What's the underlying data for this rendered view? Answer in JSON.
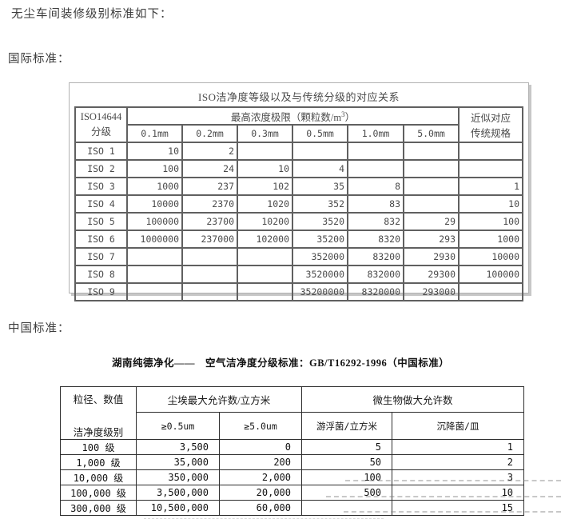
{
  "page": {
    "intro": "无尘车间装修级别标准如下：",
    "intl_label": "国际标准：",
    "cn_label": "中国标准："
  },
  "iso_table": {
    "title": "ISO洁净度等级以及与传统分级的对应关系",
    "col1_header": [
      "ISO14644",
      "分级"
    ],
    "conc_header": {
      "prefix": "最高浓度极限（颗粒数/m",
      "sup": "3",
      "suffix": "）"
    },
    "size_headers": [
      "0.1mm",
      "0.2mm",
      "0.3mm",
      "0.5mm",
      "1.0mm",
      "5.0mm"
    ],
    "legacy_header": [
      "近似对应",
      "传统规格"
    ],
    "rows": [
      [
        "ISO 1",
        "10",
        "2",
        "",
        "",
        "",
        "",
        ""
      ],
      [
        "ISO 2",
        "100",
        "24",
        "10",
        "4",
        "",
        "",
        ""
      ],
      [
        "ISO 3",
        "1000",
        "237",
        "102",
        "35",
        "8",
        "",
        "1"
      ],
      [
        "ISO 4",
        "10000",
        "2370",
        "1020",
        "352",
        "83",
        "",
        "10"
      ],
      [
        "ISO 5",
        "100000",
        "23700",
        "10200",
        "3520",
        "832",
        "29",
        "100"
      ],
      [
        "ISO 6",
        "1000000",
        "237000",
        "102000",
        "35200",
        "8320",
        "293",
        "1000"
      ],
      [
        "ISO 7",
        "",
        "",
        "",
        "352000",
        "83200",
        "2930",
        "10000"
      ],
      [
        "ISO 8",
        "",
        "",
        "",
        "3520000",
        "832000",
        "29300",
        "100000"
      ],
      [
        "ISO 9",
        "",
        "",
        "",
        "35200000",
        "8320000",
        "293000",
        ""
      ]
    ]
  },
  "cn_table": {
    "title": "湖南纯德净化——　空气洁净度分级标准：GB/T16292-1996（中国标准）",
    "corner_top": "粒径、数值",
    "corner_bottom": "洁净度级别",
    "dust_header": "尘埃最大允许数/立方米",
    "micro_header": "微生物做大允许数",
    "sub_headers": [
      "≥0.5um",
      "≥5.0um",
      "游浮菌/立方米",
      "沉降菌/皿"
    ],
    "rows": [
      [
        "100 级",
        "3,500",
        "0",
        "5",
        "1"
      ],
      [
        "1,000 级",
        "35,000",
        "200",
        "50",
        "2"
      ],
      [
        "10,000 级",
        "350,000",
        "2,000",
        "100",
        "3"
      ],
      [
        "100,000 级",
        "3,500,000",
        "20,000",
        "500",
        "10"
      ],
      [
        "300,000 级",
        "10,500,000",
        "60,000",
        "",
        "15"
      ]
    ]
  }
}
